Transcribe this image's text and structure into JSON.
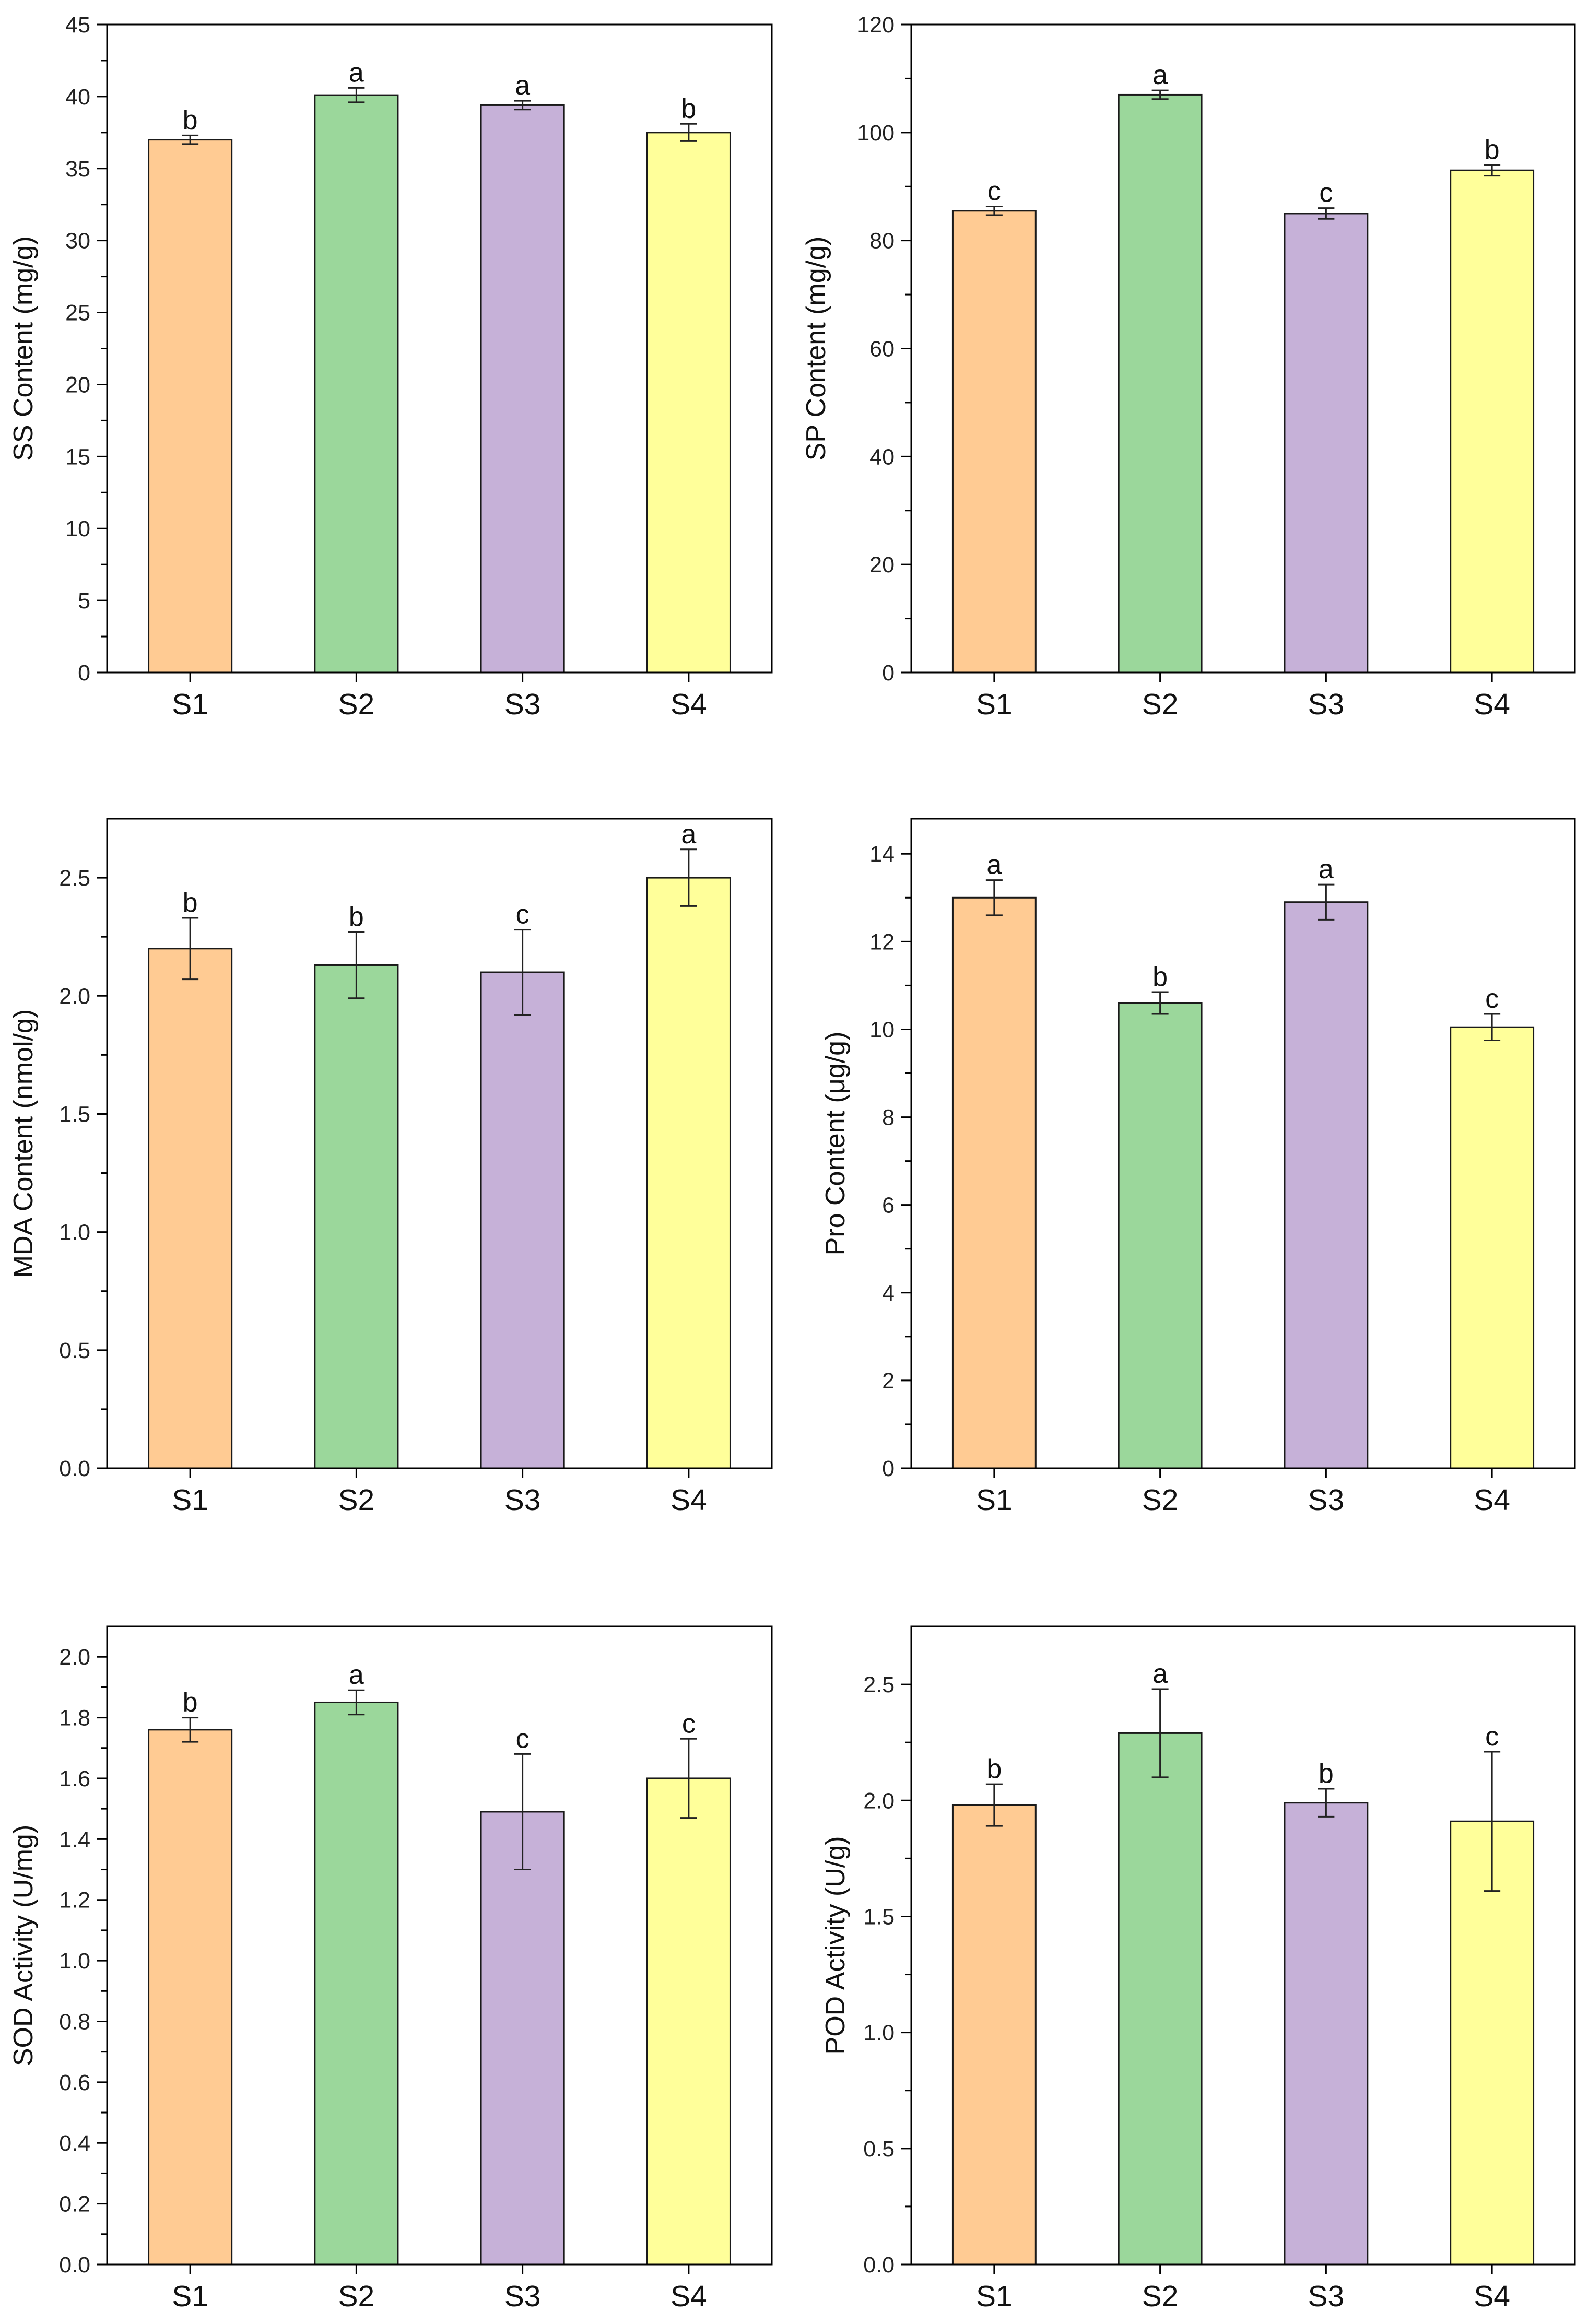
{
  "chart_data": [
    {
      "type": "bar",
      "title": "",
      "ylabel": "SS Content (mg/g)",
      "xlabel": "",
      "categories": [
        "S1",
        "S2",
        "S3",
        "S4"
      ],
      "values": [
        37.0,
        40.1,
        39.4,
        37.5
      ],
      "errors": [
        0.3,
        0.5,
        0.3,
        0.6
      ],
      "significance": [
        "b",
        "a",
        "a",
        "b"
      ],
      "ylim": [
        0,
        45
      ],
      "yticks": [
        0,
        5,
        10,
        15,
        20,
        25,
        30,
        35,
        40,
        45
      ],
      "ytick_labels": [
        "0",
        "5",
        "10",
        "15",
        "20",
        "25",
        "30",
        "35",
        "40",
        "45"
      ],
      "minor_ticks": 1,
      "grid": false
    },
    {
      "type": "bar",
      "title": "",
      "ylabel": "SP Content (mg/g)",
      "xlabel": "",
      "categories": [
        "S1",
        "S2",
        "S3",
        "S4"
      ],
      "values": [
        85.5,
        107.0,
        85.0,
        93.0
      ],
      "errors": [
        0.8,
        0.8,
        1.0,
        1.0
      ],
      "significance": [
        "c",
        "a",
        "c",
        "b"
      ],
      "ylim": [
        0,
        120
      ],
      "yticks": [
        0,
        20,
        40,
        60,
        80,
        100,
        120
      ],
      "ytick_labels": [
        "0",
        "20",
        "40",
        "60",
        "80",
        "100",
        "120"
      ],
      "minor_ticks": 1,
      "grid": false
    },
    {
      "type": "bar",
      "title": "",
      "ylabel": "MDA Content (nmol/g)",
      "xlabel": "",
      "categories": [
        "S1",
        "S2",
        "S3",
        "S4"
      ],
      "values": [
        2.2,
        2.13,
        2.1,
        2.5
      ],
      "errors": [
        0.13,
        0.14,
        0.18,
        0.12
      ],
      "significance": [
        "b",
        "b",
        "c",
        "a"
      ],
      "ylim": [
        0,
        2.75
      ],
      "yticks": [
        0,
        0.5,
        1.0,
        1.5,
        2.0,
        2.5
      ],
      "ytick_labels": [
        "0.0",
        "0.5",
        "1.0",
        "1.5",
        "2.0",
        "2.5"
      ],
      "minor_ticks": 1,
      "grid": false
    },
    {
      "type": "bar",
      "title": "",
      "ylabel": "Pro Content (μg/g)",
      "xlabel": "",
      "categories": [
        "S1",
        "S2",
        "S3",
        "S4"
      ],
      "values": [
        13.0,
        10.6,
        12.9,
        10.05
      ],
      "errors": [
        0.4,
        0.25,
        0.4,
        0.3
      ],
      "significance": [
        "a",
        "b",
        "a",
        "c"
      ],
      "ylim": [
        0,
        14.8
      ],
      "yticks": [
        0,
        2,
        4,
        6,
        8,
        10,
        12,
        14
      ],
      "ytick_labels": [
        "0",
        "2",
        "4",
        "6",
        "8",
        "10",
        "12",
        "14"
      ],
      "minor_ticks": 1,
      "grid": false
    },
    {
      "type": "bar",
      "title": "",
      "ylabel": "SOD Activity (U/mg)",
      "xlabel": "",
      "categories": [
        "S1",
        "S2",
        "S3",
        "S4"
      ],
      "values": [
        1.76,
        1.85,
        1.49,
        1.6
      ],
      "errors": [
        0.04,
        0.04,
        0.19,
        0.13
      ],
      "significance": [
        "b",
        "a",
        "c",
        "c"
      ],
      "ylim": [
        0,
        2.1
      ],
      "yticks": [
        0,
        0.2,
        0.4,
        0.6,
        0.8,
        1.0,
        1.2,
        1.4,
        1.6,
        1.8,
        2.0
      ],
      "ytick_labels": [
        "0.0",
        "0.2",
        "0.4",
        "0.6",
        "0.8",
        "1.0",
        "1.2",
        "1.4",
        "1.6",
        "1.8",
        "2.0"
      ],
      "minor_ticks": 1,
      "grid": false
    },
    {
      "type": "bar",
      "title": "",
      "ylabel": "POD Activity (U/g)",
      "xlabel": "",
      "categories": [
        "S1",
        "S2",
        "S3",
        "S4"
      ],
      "values": [
        1.98,
        2.29,
        1.99,
        1.91
      ],
      "errors": [
        0.09,
        0.19,
        0.06,
        0.3
      ],
      "significance": [
        "b",
        "a",
        "b",
        "c"
      ],
      "ylim": [
        0,
        2.75
      ],
      "yticks": [
        0,
        0.5,
        1.0,
        1.5,
        2.0,
        2.5
      ],
      "ytick_labels": [
        "0.0",
        "0.5",
        "1.0",
        "1.5",
        "2.0",
        "2.5"
      ],
      "minor_ticks": 1,
      "grid": false
    }
  ],
  "colors": {
    "bars": [
      "#FFCB93",
      "#9BD79B",
      "#C6B1D8",
      "#FFFF9A"
    ],
    "frame": "#000000",
    "text": "#111111"
  }
}
